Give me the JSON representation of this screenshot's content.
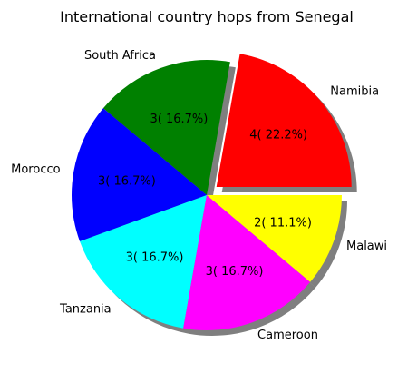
{
  "chart_data": {
    "type": "pie",
    "title": "International country hops from Senegal",
    "slices": [
      {
        "label": "Namibia",
        "value": 4,
        "display": "4( 22.2%)",
        "color": "#ff0000",
        "explode": true
      },
      {
        "label": "South Africa",
        "value": 3,
        "display": "3( 16.7%)",
        "color": "#008000",
        "explode": false
      },
      {
        "label": "Morocco",
        "value": 3,
        "display": "3( 16.7%)",
        "color": "#0000ff",
        "explode": false
      },
      {
        "label": "Tanzania",
        "value": 3,
        "display": "3( 16.7%)",
        "color": "#00ffff",
        "explode": false
      },
      {
        "label": "Cameroon",
        "value": 3,
        "display": "3( 16.7%)",
        "color": "#ff00ff",
        "explode": false
      },
      {
        "label": "Malawi",
        "value": 2,
        "display": "2( 11.1%)",
        "color": "#ffff00",
        "explode": false
      }
    ],
    "shadow": true
  }
}
